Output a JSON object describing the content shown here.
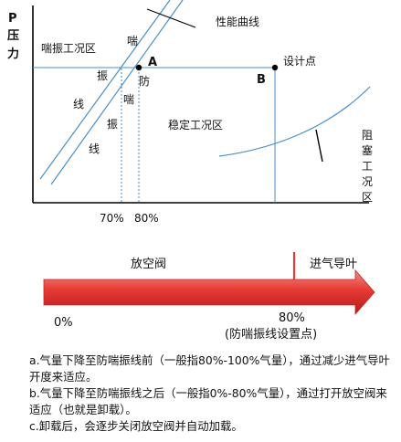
{
  "chart_labels": {
    "y_axis_p": "P",
    "y_axis_pressure": "压力",
    "performance_curve": "性能曲线",
    "surge_zone": "喘振工况区",
    "surge_vertical": [
      "喘"
    ],
    "surge_line_chars": [
      "振",
      "线"
    ],
    "anti_surge_line_chars": [
      "防",
      "喘",
      "振",
      "线"
    ],
    "point_a": "A",
    "point_b": "B",
    "design_point": "设计点",
    "stable_zone": "稳定工况区",
    "choke_zone_chars": [
      "阻",
      "塞",
      "工",
      "况",
      "区"
    ],
    "x_tick_70": "70%",
    "x_tick_80": "80%"
  },
  "scale": {
    "left_label": "放空阀",
    "right_label": "进气导叶",
    "left_value": "0%",
    "marker_value": "80%",
    "marker_note": "(防喘振线设置点)"
  },
  "notes": [
    "a.气量下降至防喘振线前（一般指80%-100%气量），通过减少进气导叶开度来适应。",
    "b.气量下降至防喘振线之后（一般指0%-80%气量），通过打开放空阀来适应（也就是卸载）。",
    "c.卸载后，会逐步关闭放空阀并自动加载。"
  ],
  "colors": {
    "axis": "#000000",
    "arrow_dark": "#b71c1c",
    "arrow_light": "#ef5350",
    "curve": "#1565c0",
    "divider": "#2e7d32",
    "marker": "#e53935"
  }
}
